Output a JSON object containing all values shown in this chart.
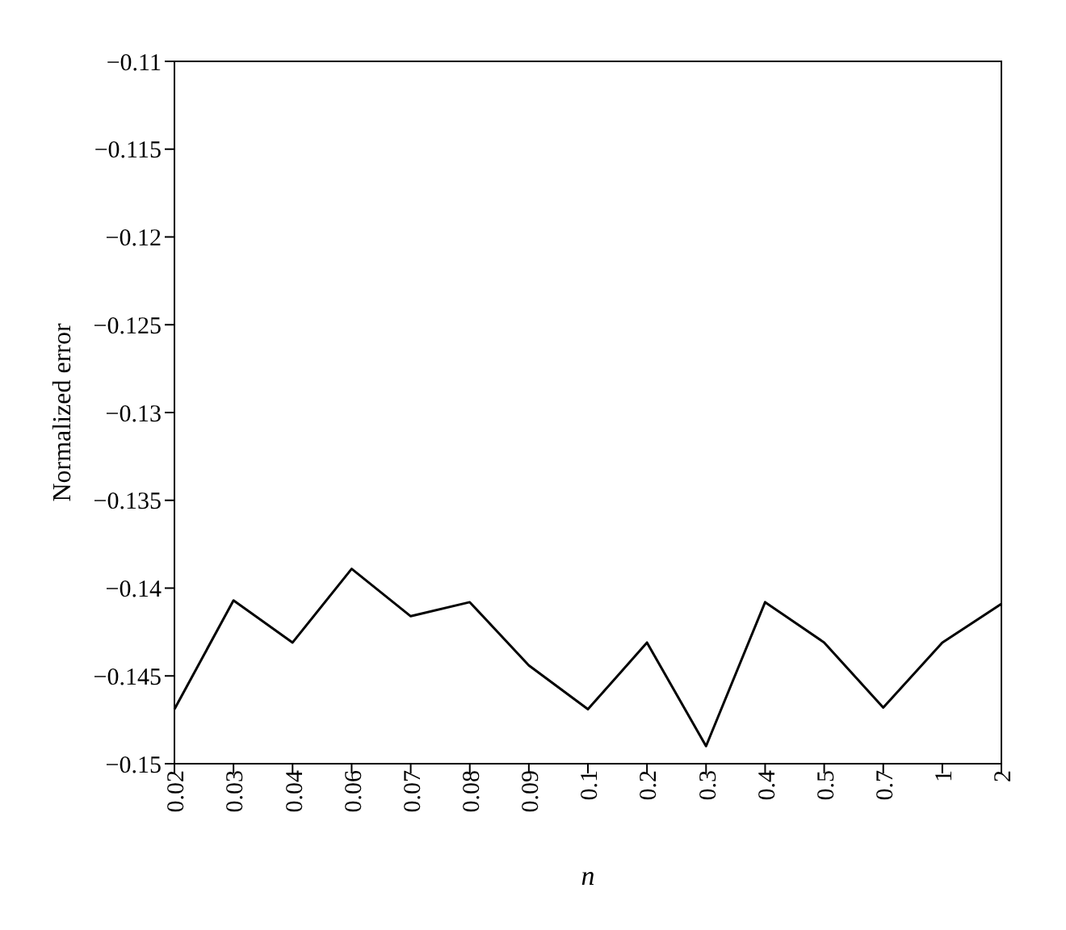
{
  "chart_data": {
    "type": "line",
    "xlabel": "n",
    "ylabel": "Normalized error",
    "categories": [
      "0.02",
      "0.03",
      "0.04",
      "0.06",
      "0.07",
      "0.08",
      "0.09",
      "0.1",
      "0.2",
      "0.3",
      "0.4",
      "0.5",
      "0.7",
      "1",
      "2"
    ],
    "series": [
      {
        "color": "#000000",
        "values": [
          -0.1469,
          -0.1407,
          -0.1431,
          -0.1389,
          -0.1416,
          -0.1408,
          -0.1444,
          -0.1469,
          -0.1431,
          -0.149,
          -0.1408,
          -0.1431,
          -0.1468,
          -0.1431,
          -0.1409
        ]
      }
    ],
    "ylim": [
      -0.15,
      -0.11
    ],
    "yticks": [
      -0.15,
      -0.145,
      -0.14,
      -0.135,
      -0.13,
      -0.125,
      -0.12,
      -0.115,
      -0.11
    ],
    "grid": false,
    "legend": false,
    "marker": "none",
    "line_style": "solid"
  }
}
